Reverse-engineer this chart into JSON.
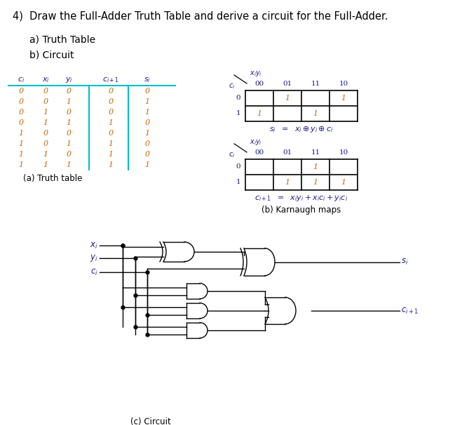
{
  "title": "4)  Draw the Full-Adder Truth Table and derive a circuit for the Full-Adder.",
  "subtitle_a": "a) Truth Table",
  "subtitle_b": "b) Circuit",
  "text_color": "#1a1a8c",
  "cyan_color": "#00bfbf",
  "truth_table": [
    [
      0,
      0,
      0,
      0,
      0
    ],
    [
      0,
      0,
      1,
      0,
      1
    ],
    [
      0,
      1,
      0,
      0,
      1
    ],
    [
      0,
      1,
      1,
      1,
      0
    ],
    [
      1,
      0,
      0,
      0,
      1
    ],
    [
      1,
      0,
      1,
      1,
      0
    ],
    [
      1,
      1,
      0,
      1,
      0
    ],
    [
      1,
      1,
      1,
      1,
      1
    ]
  ],
  "truth_table_caption": "(a) Truth table",
  "kmap1_cols": [
    "00",
    "01",
    "11",
    "10"
  ],
  "kmap1_rows": [
    "0",
    "1"
  ],
  "kmap1_values": [
    [
      0,
      1,
      0,
      1
    ],
    [
      1,
      0,
      1,
      0
    ]
  ],
  "kmap2_cols": [
    "00",
    "01",
    "11",
    "10"
  ],
  "kmap2_rows": [
    "0",
    "1"
  ],
  "kmap2_values": [
    [
      0,
      0,
      1,
      0
    ],
    [
      0,
      1,
      1,
      1
    ]
  ],
  "kmap_caption": "(b) Karnaugh maps",
  "circuit_caption": "(c) Circuit",
  "label_color": "#cc6600"
}
